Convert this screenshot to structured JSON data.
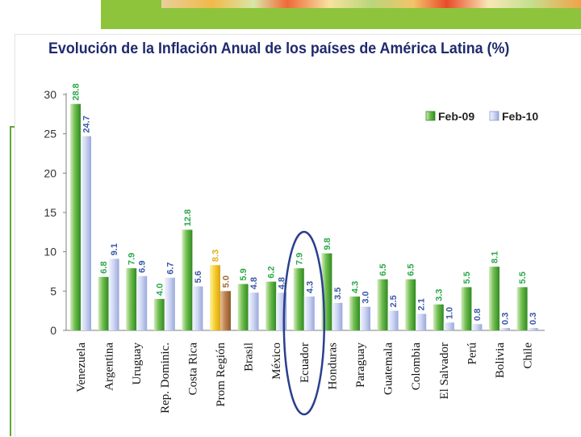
{
  "chart_data": {
    "type": "bar",
    "title": "Evolución de la Inflación Anual de los países de América Latina (%)",
    "xlabel": "",
    "ylabel": "",
    "ylim": [
      0,
      30
    ],
    "yticks": [
      0,
      5,
      10,
      15,
      20,
      25,
      30
    ],
    "categories": [
      "Venezuela",
      "Argentina",
      "Uruguay",
      "Rep. Dominic.",
      "Costa Rica",
      "Prom Región",
      "Brasil",
      "México",
      "Ecuador",
      "Honduras",
      "Paraguay",
      "Guatemala",
      "Colombia",
      "El Salvador",
      "Perú",
      "Bolivia",
      "Chile"
    ],
    "series": [
      {
        "name": "Feb-09",
        "values": [
          28.8,
          6.8,
          7.9,
          4.0,
          12.8,
          8.3,
          5.9,
          6.2,
          7.9,
          9.8,
          4.3,
          6.5,
          6.5,
          3.3,
          5.5,
          8.1,
          5.5
        ]
      },
      {
        "name": "Feb-10",
        "values": [
          24.7,
          9.1,
          6.9,
          6.7,
          5.6,
          5.0,
          4.8,
          4.8,
          4.3,
          3.5,
          3.0,
          2.5,
          2.1,
          1.0,
          0.8,
          0.3,
          0.3
        ]
      }
    ],
    "legend_position": "top-right",
    "highlight_category": "Ecuador",
    "average_category": "Prom Región",
    "colors": {
      "feb09": "#3f9a2e",
      "feb10": "#b9c4ea",
      "avg_feb09": "#f0c020",
      "avg_feb10": "#b07040",
      "label_feb09": "#2aa84a",
      "label_feb10": "#3a58a8",
      "title": "#1f2a6e",
      "highlight": "#2b3f8f"
    }
  }
}
